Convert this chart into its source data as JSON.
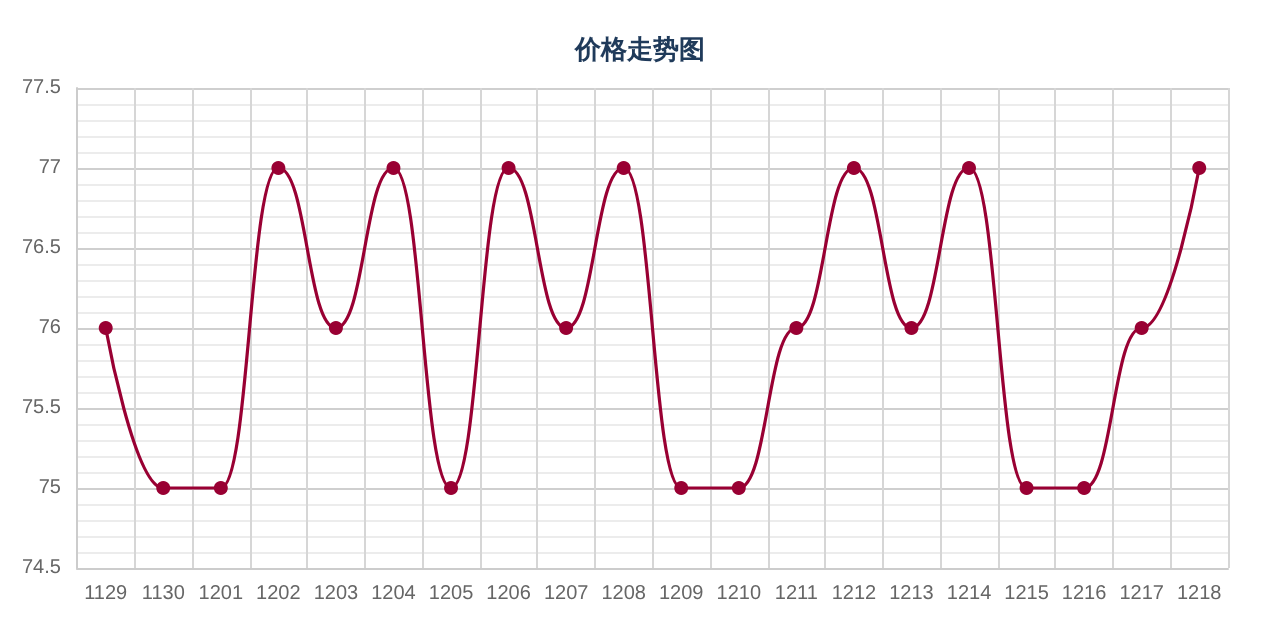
{
  "chart_data": {
    "type": "line",
    "title": "价格走势图",
    "categories": [
      "1129",
      "1130",
      "1201",
      "1202",
      "1203",
      "1204",
      "1205",
      "1206",
      "1207",
      "1208",
      "1209",
      "1210",
      "1211",
      "1212",
      "1213",
      "1214",
      "1215",
      "1216",
      "1217",
      "1218"
    ],
    "series": [
      {
        "color": "#990033",
        "values": [
          76,
          75,
          75,
          77,
          76,
          77,
          75,
          77,
          76,
          77,
          75,
          75,
          76,
          77,
          76,
          77,
          75,
          75,
          76,
          77
        ]
      }
    ],
    "ylim": [
      74.5,
      77.5
    ],
    "yticks": [
      74.5,
      75,
      75.5,
      76,
      76.5,
      77,
      77.5
    ],
    "grid": true,
    "marker": "circle",
    "line_style": "solid"
  }
}
